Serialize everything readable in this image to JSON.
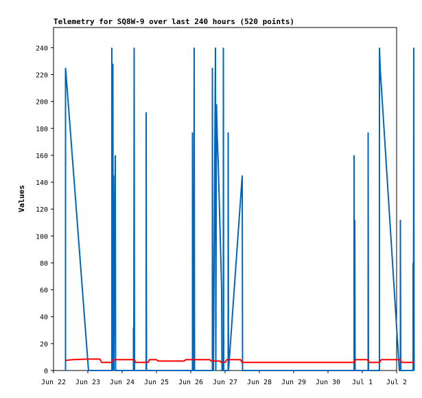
{
  "chart_data": {
    "type": "line",
    "title": "Telemetry for SQ8W-9 over last 240 hours (520 points)",
    "xlabel": "",
    "ylabel": "Values",
    "ylim": [
      0,
      255
    ],
    "yticks": [
      0,
      20,
      40,
      60,
      80,
      100,
      120,
      140,
      160,
      180,
      200,
      220,
      240
    ],
    "xlim": [
      0,
      10
    ],
    "xticks": [
      {
        "x": 0,
        "label": "Jun 22"
      },
      {
        "x": 1,
        "label": "Jun 23"
      },
      {
        "x": 2,
        "label": "Jun 24"
      },
      {
        "x": 3,
        "label": "Jun 25"
      },
      {
        "x": 4,
        "label": "Jun 26"
      },
      {
        "x": 5,
        "label": "Jun 27"
      },
      {
        "x": 6,
        "label": "Jun 28"
      },
      {
        "x": 7,
        "label": "Jun 29"
      },
      {
        "x": 8,
        "label": "Jun 30"
      },
      {
        "x": 9,
        "label": "Jul 1"
      },
      {
        "x": 10,
        "label": "Jul 2"
      }
    ],
    "grid": false,
    "legend": "none",
    "series": [
      {
        "color": "#0066bb",
        "points": [
          [
            0.35,
            0
          ],
          [
            0.35,
            225
          ],
          [
            0.36,
            222
          ],
          [
            1.02,
            0
          ],
          [
            1.7,
            0
          ],
          [
            1.7,
            240
          ],
          [
            1.72,
            0
          ],
          [
            1.73,
            228
          ],
          [
            1.74,
            0
          ],
          [
            1.75,
            145
          ],
          [
            1.76,
            0
          ],
          [
            1.8,
            160
          ],
          [
            1.81,
            0
          ],
          [
            2.33,
            0
          ],
          [
            2.33,
            32
          ],
          [
            2.34,
            0
          ],
          [
            2.35,
            240
          ],
          [
            2.36,
            0
          ],
          [
            2.7,
            0
          ],
          [
            2.7,
            192
          ],
          [
            2.71,
            0
          ],
          [
            4.05,
            0
          ],
          [
            4.05,
            177
          ],
          [
            4.07,
            0
          ],
          [
            4.08,
            72
          ],
          [
            4.09,
            0
          ],
          [
            4.1,
            240
          ],
          [
            4.11,
            0
          ],
          [
            4.63,
            0
          ],
          [
            4.63,
            225
          ],
          [
            4.64,
            0
          ],
          [
            4.65,
            65
          ],
          [
            4.66,
            0
          ],
          [
            4.72,
            240
          ],
          [
            4.73,
            0
          ],
          [
            4.75,
            198
          ],
          [
            4.77,
            175
          ],
          [
            4.8,
            155
          ],
          [
            4.9,
            60
          ],
          [
            4.91,
            0
          ],
          [
            4.95,
            0
          ],
          [
            4.95,
            240
          ],
          [
            4.96,
            0
          ],
          [
            5.09,
            0
          ],
          [
            5.09,
            177
          ],
          [
            5.1,
            0
          ],
          [
            5.5,
            145
          ],
          [
            5.51,
            0
          ],
          [
            8.76,
            0
          ],
          [
            8.76,
            160
          ],
          [
            8.77,
            0
          ],
          [
            8.78,
            112
          ],
          [
            8.79,
            0
          ],
          [
            9.17,
            0
          ],
          [
            9.17,
            177
          ],
          [
            9.18,
            0
          ],
          [
            9.5,
            0
          ],
          [
            9.5,
            240
          ],
          [
            9.52,
            225
          ],
          [
            10.08,
            0
          ],
          [
            10.11,
            0
          ],
          [
            10.11,
            112
          ],
          [
            10.12,
            0
          ],
          [
            10.48,
            0
          ],
          [
            10.48,
            80
          ],
          [
            10.49,
            0
          ],
          [
            10.5,
            240
          ],
          [
            10.51,
            0
          ]
        ]
      },
      {
        "color": "#ff0000",
        "points": [
          [
            0.35,
            7.5
          ],
          [
            0.55,
            8
          ],
          [
            1.0,
            8.5
          ],
          [
            1.35,
            8.5
          ],
          [
            1.4,
            6
          ],
          [
            1.7,
            6
          ],
          [
            1.75,
            8
          ],
          [
            2.35,
            8
          ],
          [
            2.4,
            6
          ],
          [
            2.75,
            6
          ],
          [
            2.8,
            8
          ],
          [
            3.0,
            8
          ],
          [
            3.05,
            7
          ],
          [
            3.8,
            7
          ],
          [
            3.85,
            8
          ],
          [
            4.55,
            8
          ],
          [
            4.6,
            7
          ],
          [
            4.85,
            7
          ],
          [
            4.9,
            6
          ],
          [
            5.0,
            6
          ],
          [
            5.05,
            8
          ],
          [
            5.45,
            8
          ],
          [
            5.5,
            6
          ],
          [
            8.76,
            6
          ],
          [
            8.8,
            8
          ],
          [
            9.15,
            8
          ],
          [
            9.2,
            6
          ],
          [
            9.5,
            6
          ],
          [
            9.55,
            8
          ],
          [
            10.1,
            8
          ],
          [
            10.15,
            6
          ],
          [
            10.5,
            6
          ]
        ]
      }
    ]
  }
}
